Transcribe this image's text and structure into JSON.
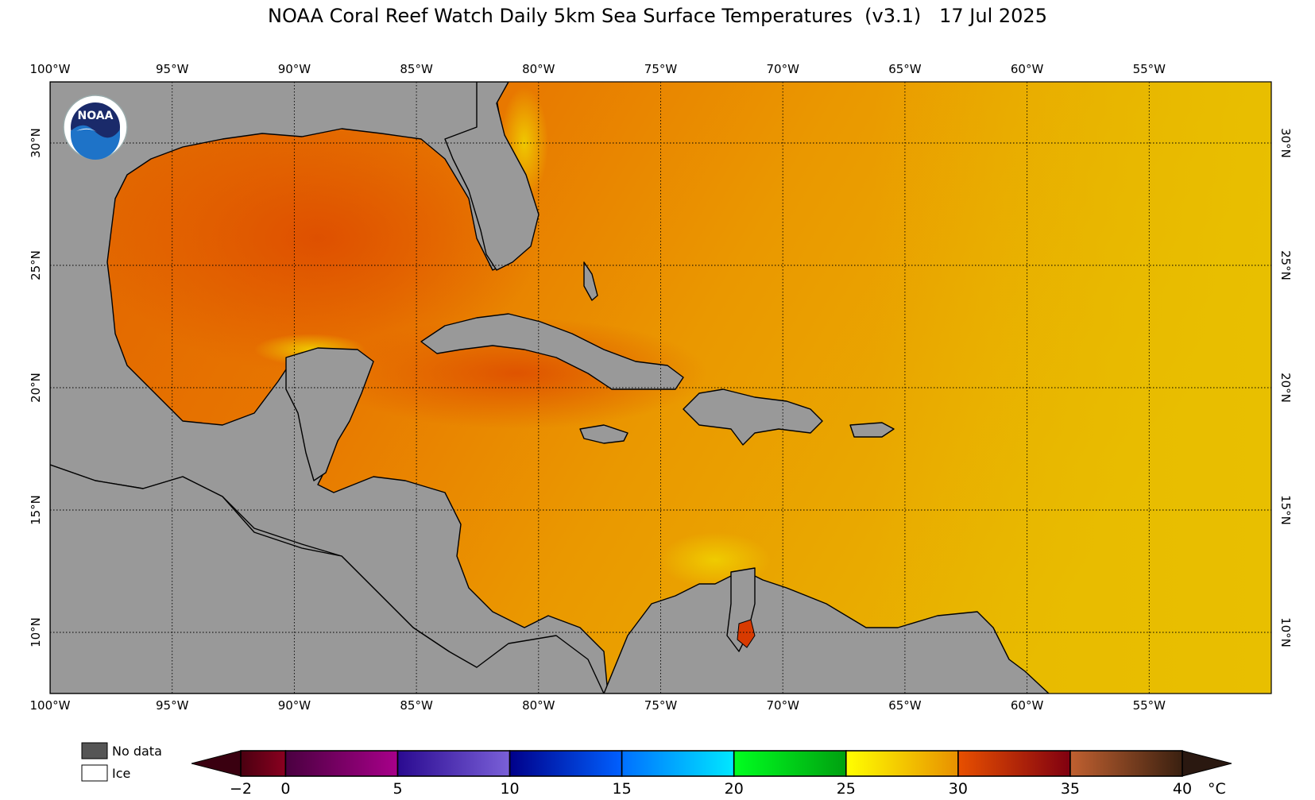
{
  "title": "NOAA Coral Reef Watch Daily 5km Sea Surface Temperatures  (v3.1)   17 Jul 2025",
  "logo": {
    "name": "noaa-logo",
    "text": "NOAA"
  },
  "map": {
    "lon_min": -100,
    "lon_max": -50,
    "lat_min": 7.5,
    "lat_max": 32.5,
    "lon_ticks": [
      {
        "value": -100,
        "label": "100°W"
      },
      {
        "value": -95,
        "label": "95°W"
      },
      {
        "value": -90,
        "label": "90°W"
      },
      {
        "value": -85,
        "label": "85°W"
      },
      {
        "value": -80,
        "label": "80°W"
      },
      {
        "value": -75,
        "label": "75°W"
      },
      {
        "value": -70,
        "label": "70°W"
      },
      {
        "value": -65,
        "label": "65°W"
      },
      {
        "value": -60,
        "label": "60°W"
      },
      {
        "value": -55,
        "label": "55°W"
      }
    ],
    "lat_ticks": [
      {
        "value": 30,
        "label": "30°N"
      },
      {
        "value": 25,
        "label": "25°N"
      },
      {
        "value": 20,
        "label": "20°N"
      },
      {
        "value": 15,
        "label": "15°N"
      },
      {
        "value": 10,
        "label": "10°N"
      }
    ],
    "land_color": "#999999",
    "ocean_base_color": "#e89000"
  },
  "colorbar": {
    "ticks": [
      {
        "value": -2,
        "label": "−2"
      },
      {
        "value": 0,
        "label": "0"
      },
      {
        "value": 5,
        "label": "5"
      },
      {
        "value": 10,
        "label": "10"
      },
      {
        "value": 15,
        "label": "15"
      },
      {
        "value": 20,
        "label": "20"
      },
      {
        "value": 25,
        "label": "25"
      },
      {
        "value": 30,
        "label": "30"
      },
      {
        "value": 35,
        "label": "35"
      },
      {
        "value": 40,
        "label": "40"
      }
    ],
    "unit": "°C",
    "range": [
      -2,
      40
    ],
    "segments": [
      {
        "from": -2,
        "to": 0,
        "colors": [
          "#4a0010",
          "#8a0020"
        ]
      },
      {
        "from": 0,
        "to": 5,
        "colors": [
          "#4a0040",
          "#a8008a"
        ]
      },
      {
        "from": 5,
        "to": 10,
        "colors": [
          "#2a0a90",
          "#7a60d8"
        ]
      },
      {
        "from": 10,
        "to": 15,
        "colors": [
          "#00008a",
          "#0060ff"
        ]
      },
      {
        "from": 15,
        "to": 20,
        "colors": [
          "#0070ff",
          "#00e8ff"
        ]
      },
      {
        "from": 20,
        "to": 25,
        "colors": [
          "#00ff20",
          "#00a010"
        ]
      },
      {
        "from": 25,
        "to": 30,
        "colors": [
          "#ffff00",
          "#e89000"
        ]
      },
      {
        "from": 30,
        "to": 35,
        "colors": [
          "#e85000",
          "#800010"
        ]
      },
      {
        "from": 35,
        "to": 40,
        "colors": [
          "#c06030",
          "#3a2010"
        ]
      }
    ],
    "under_color": "#3a0010",
    "over_color": "#2a1810"
  },
  "legend": {
    "no_data": {
      "label": "No data",
      "color": "#555555"
    },
    "ice": {
      "label": "Ice",
      "color": "#ffffff"
    }
  }
}
